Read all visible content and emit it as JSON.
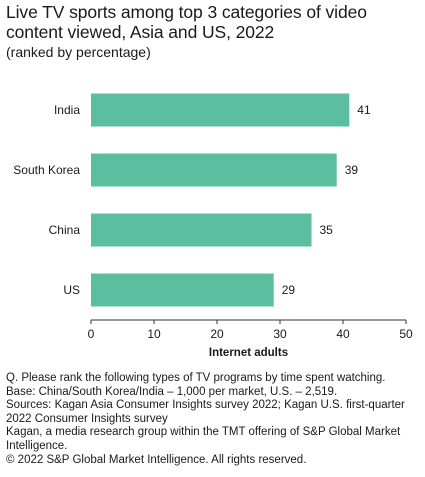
{
  "title": "Live TV sports among top 3 categories of video content viewed, Asia and US, 2022",
  "subtitle": "(ranked by percentage)",
  "colors": {
    "bar": "#5bbf9f",
    "axis": "#333333",
    "text": "#1a1a1a"
  },
  "chart_data": {
    "type": "bar",
    "orientation": "horizontal",
    "title": "Live TV sports among top 3 categories of video content viewed, Asia and US, 2022",
    "subtitle": "(ranked by percentage)",
    "categories": [
      "India",
      "South Korea",
      "China",
      "US"
    ],
    "values": [
      41,
      39,
      35,
      29
    ],
    "data_labels": [
      "41",
      "39",
      "35",
      "29"
    ],
    "xlabel": "Internet adults",
    "ylabel": "",
    "xlim": [
      0,
      50
    ],
    "xticks": [
      0,
      10,
      20,
      30,
      40,
      50
    ],
    "grid": false,
    "legend": "none"
  },
  "notes": [
    "Q. Please rank the following types of TV programs by time spent watching.",
    "Base: China/South Korea/India – 1,000 per market, U.S. – 2,519.",
    "Sources: Kagan Asia Consumer Insights survey 2022; Kagan U.S. first-quarter",
    "2022 Consumer Insights survey",
    "Kagan, a media research group within the TMT offering of S&P Global Market",
    "Intelligence.",
    "© 2022 S&P Global Market Intelligence. All rights reserved."
  ]
}
